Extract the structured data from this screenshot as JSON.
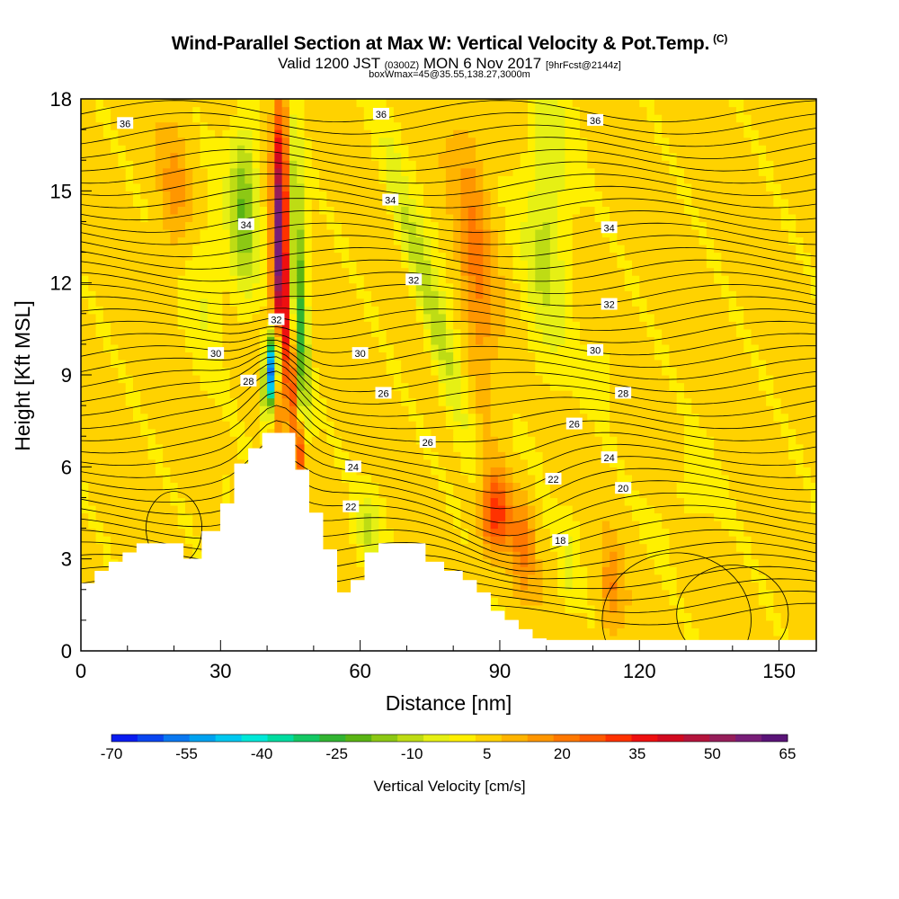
{
  "header": {
    "title": "Wind-Parallel Section at Max W: Vertical Velocity & Pot.Temp.",
    "title_mark": "(C)",
    "valid_prefix": "Valid 1200 JST",
    "valid_utc": "(0300Z)",
    "valid_date": "MON 6 Nov 2017",
    "forecast": "[9hrFcst@2144z]",
    "box_info": "boxWmax=45@35.55,138.27,3000m"
  },
  "chart_data": {
    "type": "heatmap",
    "xlabel": "Distance [nm]",
    "ylabel": "Height [Kft MSL]",
    "xlim": [
      0,
      158
    ],
    "ylim": [
      0,
      18
    ],
    "x_ticks": [
      0,
      30,
      60,
      90,
      120,
      150
    ],
    "y_ticks": [
      0,
      3,
      6,
      9,
      12,
      15,
      18
    ],
    "colorbar": {
      "title": "Vertical Velocity [cm/s]",
      "labels": [
        "-70",
        "-55",
        "-40",
        "-25",
        "-10",
        "5",
        "20",
        "35",
        "50",
        "65"
      ],
      "colors": [
        "#0a1cf0",
        "#0a46f0",
        "#0a78f0",
        "#00a2f0",
        "#00c8f0",
        "#00e8d8",
        "#00dca0",
        "#14c864",
        "#32b432",
        "#5ab414",
        "#8cc814",
        "#bedc14",
        "#e6f014",
        "#fff000",
        "#ffd200",
        "#ffb400",
        "#ff9600",
        "#ff7800",
        "#ff5a00",
        "#ff3200",
        "#ee1010",
        "#d20a20",
        "#b4143c",
        "#961e5a",
        "#781e78",
        "#5a1478"
      ]
    },
    "contour_labels": [
      {
        "value": "36",
        "x": 9.5,
        "y": 17.2
      },
      {
        "value": "36",
        "x": 64.5,
        "y": 17.5
      },
      {
        "value": "36",
        "x": 110.5,
        "y": 17.3
      },
      {
        "value": "34",
        "x": 35.5,
        "y": 13.9
      },
      {
        "value": "34",
        "x": 66.5,
        "y": 14.7
      },
      {
        "value": "34",
        "x": 113.5,
        "y": 13.8
      },
      {
        "value": "32",
        "x": 42,
        "y": 10.8
      },
      {
        "value": "32",
        "x": 71.5,
        "y": 12.1
      },
      {
        "value": "32",
        "x": 113.5,
        "y": 11.3
      },
      {
        "value": "30",
        "x": 29,
        "y": 9.7
      },
      {
        "value": "30",
        "x": 60,
        "y": 9.7
      },
      {
        "value": "30",
        "x": 110.5,
        "y": 9.8
      },
      {
        "value": "28",
        "x": 36,
        "y": 8.8
      },
      {
        "value": "28",
        "x": 116.5,
        "y": 8.4
      },
      {
        "value": "26",
        "x": 65,
        "y": 8.4
      },
      {
        "value": "26",
        "x": 106,
        "y": 7.4
      },
      {
        "value": "26",
        "x": 74.5,
        "y": 6.8
      },
      {
        "value": "24",
        "x": 58.5,
        "y": 6.0
      },
      {
        "value": "24",
        "x": 113.5,
        "y": 6.3
      },
      {
        "value": "22",
        "x": 101.5,
        "y": 5.6
      },
      {
        "value": "22",
        "x": 58,
        "y": 4.7
      },
      {
        "value": "20",
        "x": 116.5,
        "y": 5.3
      },
      {
        "value": "18",
        "x": 103,
        "y": 3.6
      }
    ]
  }
}
